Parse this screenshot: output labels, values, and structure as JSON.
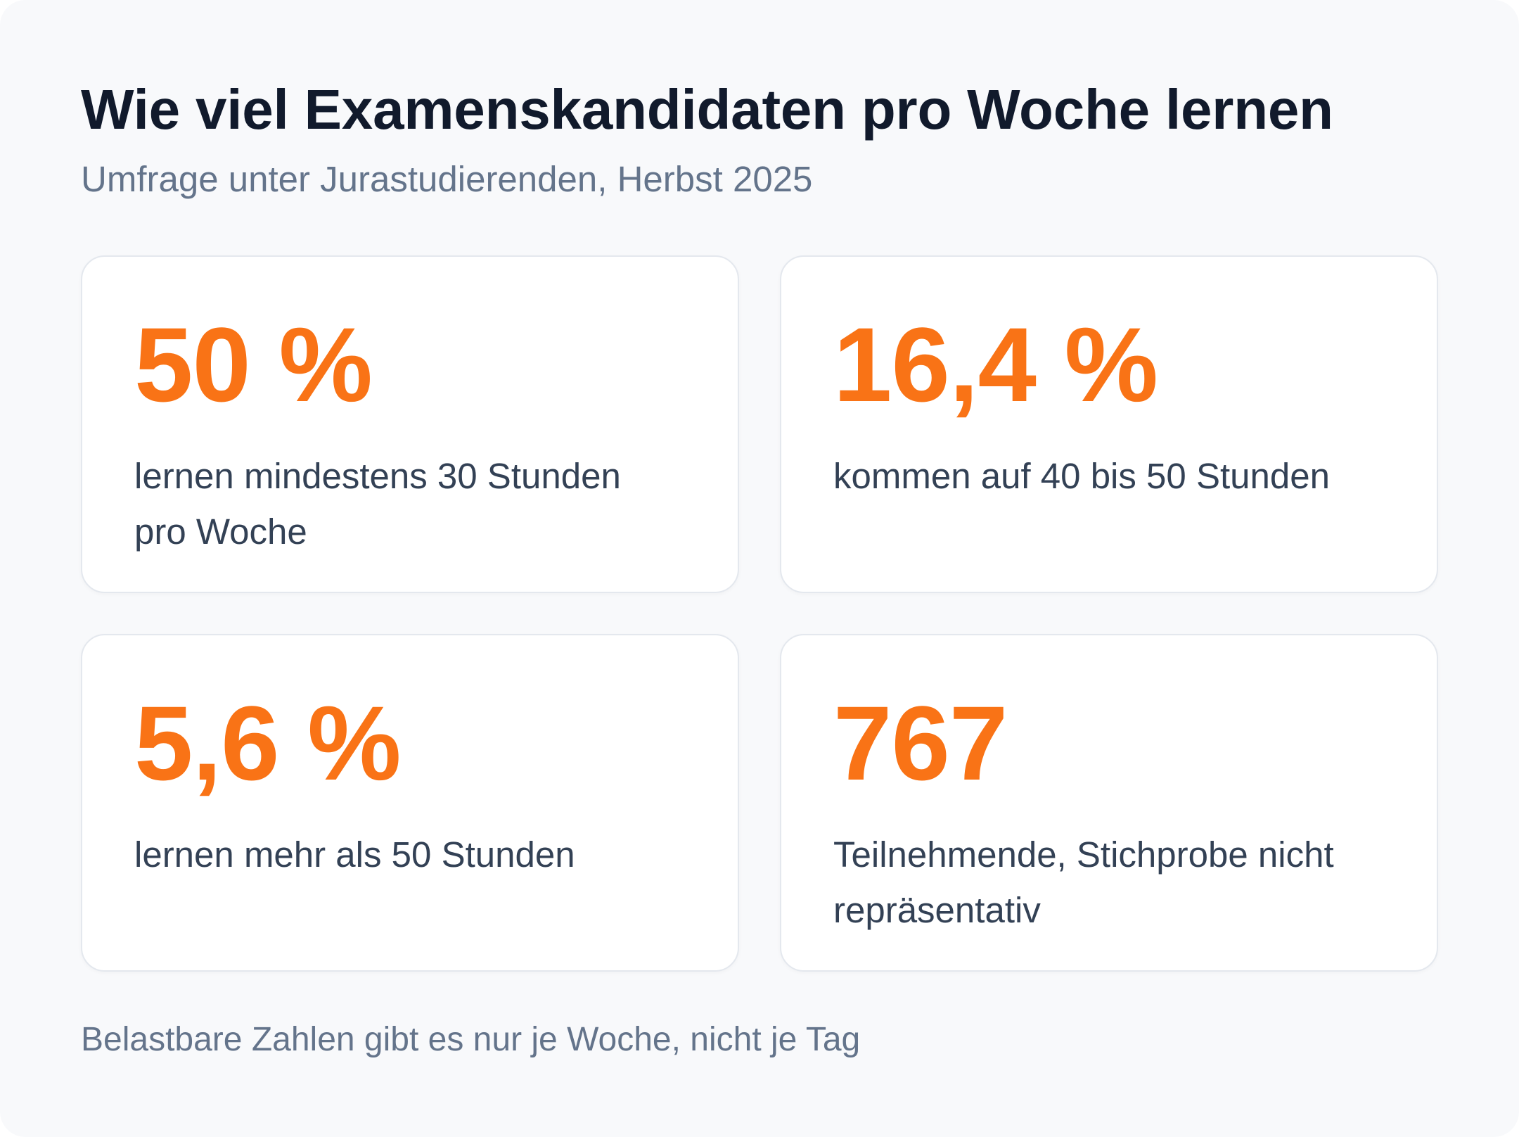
{
  "header": {
    "title": "Wie viel Examenskandidaten pro Woche lernen",
    "subtitle": "Umfrage unter Jurastudierenden, Herbst 2025"
  },
  "stats": [
    {
      "value": "50 %",
      "label": "lernen mindestens 30 Stunden pro Woche"
    },
    {
      "value": "16,4 %",
      "label": "kommen auf 40 bis 50 Stunden"
    },
    {
      "value": "5,6 %",
      "label": "lernen mehr als 50 Stunden"
    },
    {
      "value": "767",
      "label": "Teilnehmende, Stichprobe nicht repräsentativ"
    }
  ],
  "footnote": "Belastbare Zahlen gibt es nur je Woche, nicht je Tag",
  "colors": {
    "accent": "#f97316",
    "title": "#111a2c",
    "muted": "#64748b",
    "body_text": "#334155",
    "background": "#f8f9fb",
    "card": "#ffffff"
  }
}
